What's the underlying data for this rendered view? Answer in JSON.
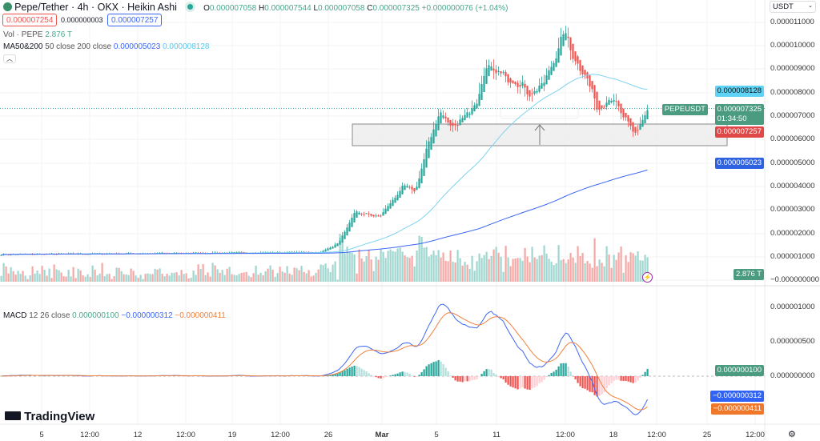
{
  "header": {
    "title": "Pepe/Tether · 4h · OKX · Heikin Ashi",
    "o_label": "O",
    "o": "0.000007058",
    "h_label": "H",
    "h": "0.000007544",
    "l_label": "L",
    "l": "0.000007058",
    "c_label": "C",
    "c": "0.000007325",
    "change": "+0.000000076 (+1.04%)",
    "sell": "0.000007254",
    "spread": "0.000000003",
    "buy": "0.000007257"
  },
  "indicators": {
    "vol_label": "Vol · PEPE",
    "vol_value": "2.876 T",
    "ma_label": "MA50&200",
    "ma_params": "50 close 200 close",
    "ma200_value": "0.000005023",
    "ma50_value": "0.000008128",
    "macd_label": "MACD",
    "macd_params": "12 26 close",
    "macd_hist": "0.000000100",
    "macd_line": "−0.000000312",
    "macd_signal": "−0.000000411"
  },
  "currency": "USDT",
  "price_axis": [
    "0.000011000",
    "0.000010000",
    "0.000009000",
    "0.000008000",
    "0.000007000",
    "0.000006000",
    "0.000005000",
    "0.000004000",
    "0.000003000",
    "0.000002000",
    "0.000001000",
    "−0.000000000"
  ],
  "price_tags": {
    "ma50": "0.000008128",
    "symbol": "PEPEUSDT",
    "last": "0.000007325",
    "countdown": "01:34:50",
    "bid": "0.000007257",
    "ma200": "0.000005023",
    "volume": "2.876 T"
  },
  "macd_axis": [
    "0.000001000",
    "0.000000500",
    "0.000000000"
  ],
  "macd_tags": {
    "hist": "0.000000100",
    "macd": "−0.000000312",
    "signal": "−0.000000411"
  },
  "time_axis": [
    "5",
    "12:00",
    "12",
    "12:00",
    "19",
    "12:00",
    "26",
    "Mar",
    "5",
    "11",
    "12:00",
    "18",
    "12:00",
    "25",
    "12:00"
  ],
  "logo": "TradingView",
  "colors": {
    "up": "#26a69a",
    "down": "#ef5350",
    "ma50": "#7fd3f0",
    "ma200": "#3d67f5",
    "macd": "#3d67f5",
    "signal": "#f0803c"
  },
  "chart_data": {
    "type": "candlestick",
    "units": "millionths USDT",
    "bars": 270,
    "close_keypoints": [
      [
        0,
        1.1
      ],
      [
        133,
        1.2
      ],
      [
        140,
        1.6
      ],
      [
        147,
        2.9
      ],
      [
        157,
        2.7
      ],
      [
        167,
        4.0
      ],
      [
        172,
        3.8
      ],
      [
        177,
        5.7
      ],
      [
        182,
        7.2
      ],
      [
        187,
        6.5
      ],
      [
        192,
        7.0
      ],
      [
        197,
        7.5
      ],
      [
        202,
        9.0
      ],
      [
        207,
        8.8
      ],
      [
        213,
        8.6
      ],
      [
        220,
        8.0
      ],
      [
        225,
        8.3
      ],
      [
        230,
        9.5
      ],
      [
        234,
        10.6
      ],
      [
        238,
        9.5
      ],
      [
        243,
        8.7
      ],
      [
        248,
        7.3
      ],
      [
        253,
        7.9
      ],
      [
        258,
        7.0
      ],
      [
        263,
        6.2
      ],
      [
        269,
        7.325
      ]
    ],
    "ylim": [
      0,
      11
    ]
  }
}
